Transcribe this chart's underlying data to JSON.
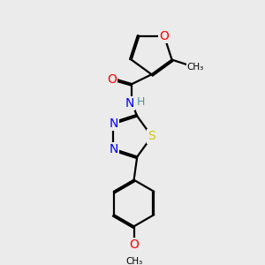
{
  "bg_color": "#ebebeb",
  "bond_color": "#000000",
  "bond_width": 1.6,
  "atom_colors": {
    "O": "#ff0000",
    "N": "#0000ff",
    "S": "#cccc00",
    "C": "#000000",
    "H": "#4a9a9a"
  },
  "font_size": 9,
  "fig_width": 3.0,
  "fig_height": 3.0
}
